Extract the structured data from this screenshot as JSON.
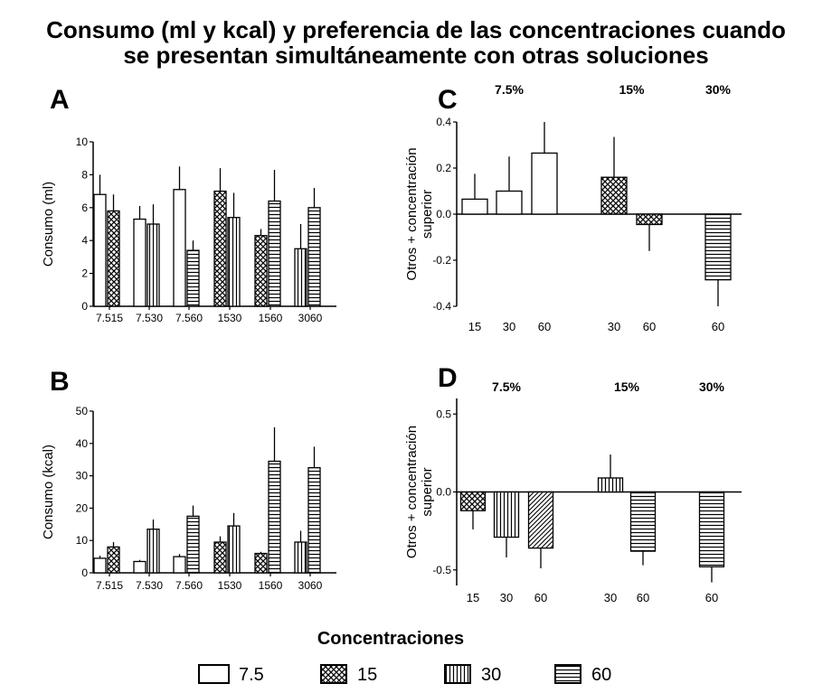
{
  "title_lines": [
    "Consumo (ml y kcal) y preferencia de las concentraciones cuando",
    "se presentan simultáneamente con otras soluciones"
  ],
  "colors": {
    "ink": "#000000",
    "background": "#ffffff"
  },
  "patterns": {
    "7.5": "open",
    "15": "crosshatch",
    "30": "vertical-lines",
    "60": "horizontal-lines"
  },
  "legend": {
    "title": "Concentraciones",
    "items": [
      {
        "label": "7.5",
        "pattern": "open"
      },
      {
        "label": "15",
        "pattern": "crosshatch"
      },
      {
        "label": "30",
        "pattern": "vertical-lines"
      },
      {
        "label": "60",
        "pattern": "horizontal-lines"
      }
    ]
  },
  "chart_data": [
    {
      "panel": "A",
      "type": "bar",
      "ylabel": "Consumo (ml)",
      "ylim": [
        0,
        10
      ],
      "yticks": [
        0,
        2,
        4,
        6,
        8,
        10
      ],
      "categories": [
        "7.515",
        "7.530",
        "7.560",
        "1530",
        "1560",
        "3060"
      ],
      "bars": [
        {
          "group": "7.515",
          "concentration": "7.5",
          "value": 6.8,
          "err": 1.2
        },
        {
          "group": "7.515",
          "concentration": "15",
          "value": 5.8,
          "err": 1.0
        },
        {
          "group": "7.530",
          "concentration": "7.5",
          "value": 5.3,
          "err": 0.8
        },
        {
          "group": "7.530",
          "concentration": "30",
          "value": 5.0,
          "err": 1.2
        },
        {
          "group": "7.560",
          "concentration": "7.5",
          "value": 7.1,
          "err": 1.4
        },
        {
          "group": "7.560",
          "concentration": "60",
          "value": 3.4,
          "err": 0.6
        },
        {
          "group": "1530",
          "concentration": "15",
          "value": 7.0,
          "err": 1.4
        },
        {
          "group": "1530",
          "concentration": "30",
          "value": 5.4,
          "err": 1.5
        },
        {
          "group": "1560",
          "concentration": "15",
          "value": 4.3,
          "err": 0.4
        },
        {
          "group": "1560",
          "concentration": "60",
          "value": 6.4,
          "err": 1.9
        },
        {
          "group": "3060",
          "concentration": "30",
          "value": 3.5,
          "err": 1.5
        },
        {
          "group": "3060",
          "concentration": "60",
          "value": 6.0,
          "err": 1.2
        }
      ]
    },
    {
      "panel": "B",
      "type": "bar",
      "ylabel": "Consumo (kcal)",
      "ylim": [
        0,
        50
      ],
      "yticks": [
        0,
        10,
        20,
        30,
        40,
        50
      ],
      "categories": [
        "7.515",
        "7.530",
        "7.560",
        "1530",
        "1560",
        "3060"
      ],
      "bars": [
        {
          "group": "7.515",
          "concentration": "7.5",
          "value": 4.5,
          "err": 0.8
        },
        {
          "group": "7.515",
          "concentration": "15",
          "value": 8.0,
          "err": 1.5
        },
        {
          "group": "7.530",
          "concentration": "7.5",
          "value": 3.5,
          "err": 0.5
        },
        {
          "group": "7.530",
          "concentration": "30",
          "value": 13.5,
          "err": 3.0
        },
        {
          "group": "7.560",
          "concentration": "7.5",
          "value": 5.0,
          "err": 0.8
        },
        {
          "group": "7.560",
          "concentration": "60",
          "value": 17.5,
          "err": 3.3
        },
        {
          "group": "1530",
          "concentration": "15",
          "value": 9.5,
          "err": 1.8
        },
        {
          "group": "1530",
          "concentration": "30",
          "value": 14.5,
          "err": 4.0
        },
        {
          "group": "1560",
          "concentration": "15",
          "value": 6.0,
          "err": 0.5
        },
        {
          "group": "1560",
          "concentration": "60",
          "value": 34.5,
          "err": 10.5
        },
        {
          "group": "3060",
          "concentration": "30",
          "value": 9.5,
          "err": 3.5
        },
        {
          "group": "3060",
          "concentration": "60",
          "value": 32.5,
          "err": 6.5
        }
      ]
    },
    {
      "panel": "C",
      "type": "bar",
      "ylabel": "Otros + concentración superior",
      "ylim": [
        -0.4,
        0.4
      ],
      "yticks": [
        -0.4,
        -0.2,
        0.0,
        0.2,
        0.4
      ],
      "group_labels": [
        {
          "label": "7.5%",
          "center_slot": 1
        },
        {
          "label": "15%",
          "center_slot": 3.5
        },
        {
          "label": "30%",
          "center_slot": 5
        }
      ],
      "bars": [
        {
          "slot": 0,
          "label": "15",
          "concentration": "7.5",
          "value": 0.065,
          "err": 0.11
        },
        {
          "slot": 1,
          "label": "30",
          "concentration": "7.5",
          "value": 0.1,
          "err": 0.15
        },
        {
          "slot": 2,
          "label": "60",
          "concentration": "7.5",
          "value": 0.265,
          "err": 0.135
        },
        {
          "slot": 3,
          "label": "30",
          "concentration": "15",
          "value": 0.16,
          "err": 0.175
        },
        {
          "slot": 4,
          "label": "60",
          "concentration": "15",
          "value": -0.045,
          "err": 0.115
        },
        {
          "slot": 5,
          "label": "60",
          "concentration": "60",
          "value": -0.285,
          "err": 0.115
        }
      ]
    },
    {
      "panel": "D",
      "type": "bar",
      "ylabel": "Otros + concentración superior",
      "ylim": [
        -0.6,
        0.6
      ],
      "yticks": [
        -0.5,
        0.0,
        0.5
      ],
      "group_labels": [
        {
          "label": "7.5%",
          "center_slot": 1
        },
        {
          "label": "15%",
          "center_slot": 3.5
        },
        {
          "label": "30%",
          "center_slot": 5
        }
      ],
      "bars": [
        {
          "slot": 0,
          "label": "15",
          "concentration": "15",
          "value": -0.12,
          "err": 0.12
        },
        {
          "slot": 1,
          "label": "30",
          "concentration": "30",
          "value": -0.29,
          "err": 0.13
        },
        {
          "slot": 2,
          "label": "60",
          "concentration": "60",
          "value": -0.36,
          "err": 0.13
        },
        {
          "slot": 3,
          "label": "30",
          "concentration": "30",
          "value": 0.09,
          "err": 0.15
        },
        {
          "slot": 4,
          "label": "60",
          "concentration": "60",
          "value": -0.38,
          "err": 0.09
        },
        {
          "slot": 5,
          "label": "60",
          "concentration": "60",
          "value": -0.48,
          "err": 0.1
        }
      ]
    }
  ]
}
